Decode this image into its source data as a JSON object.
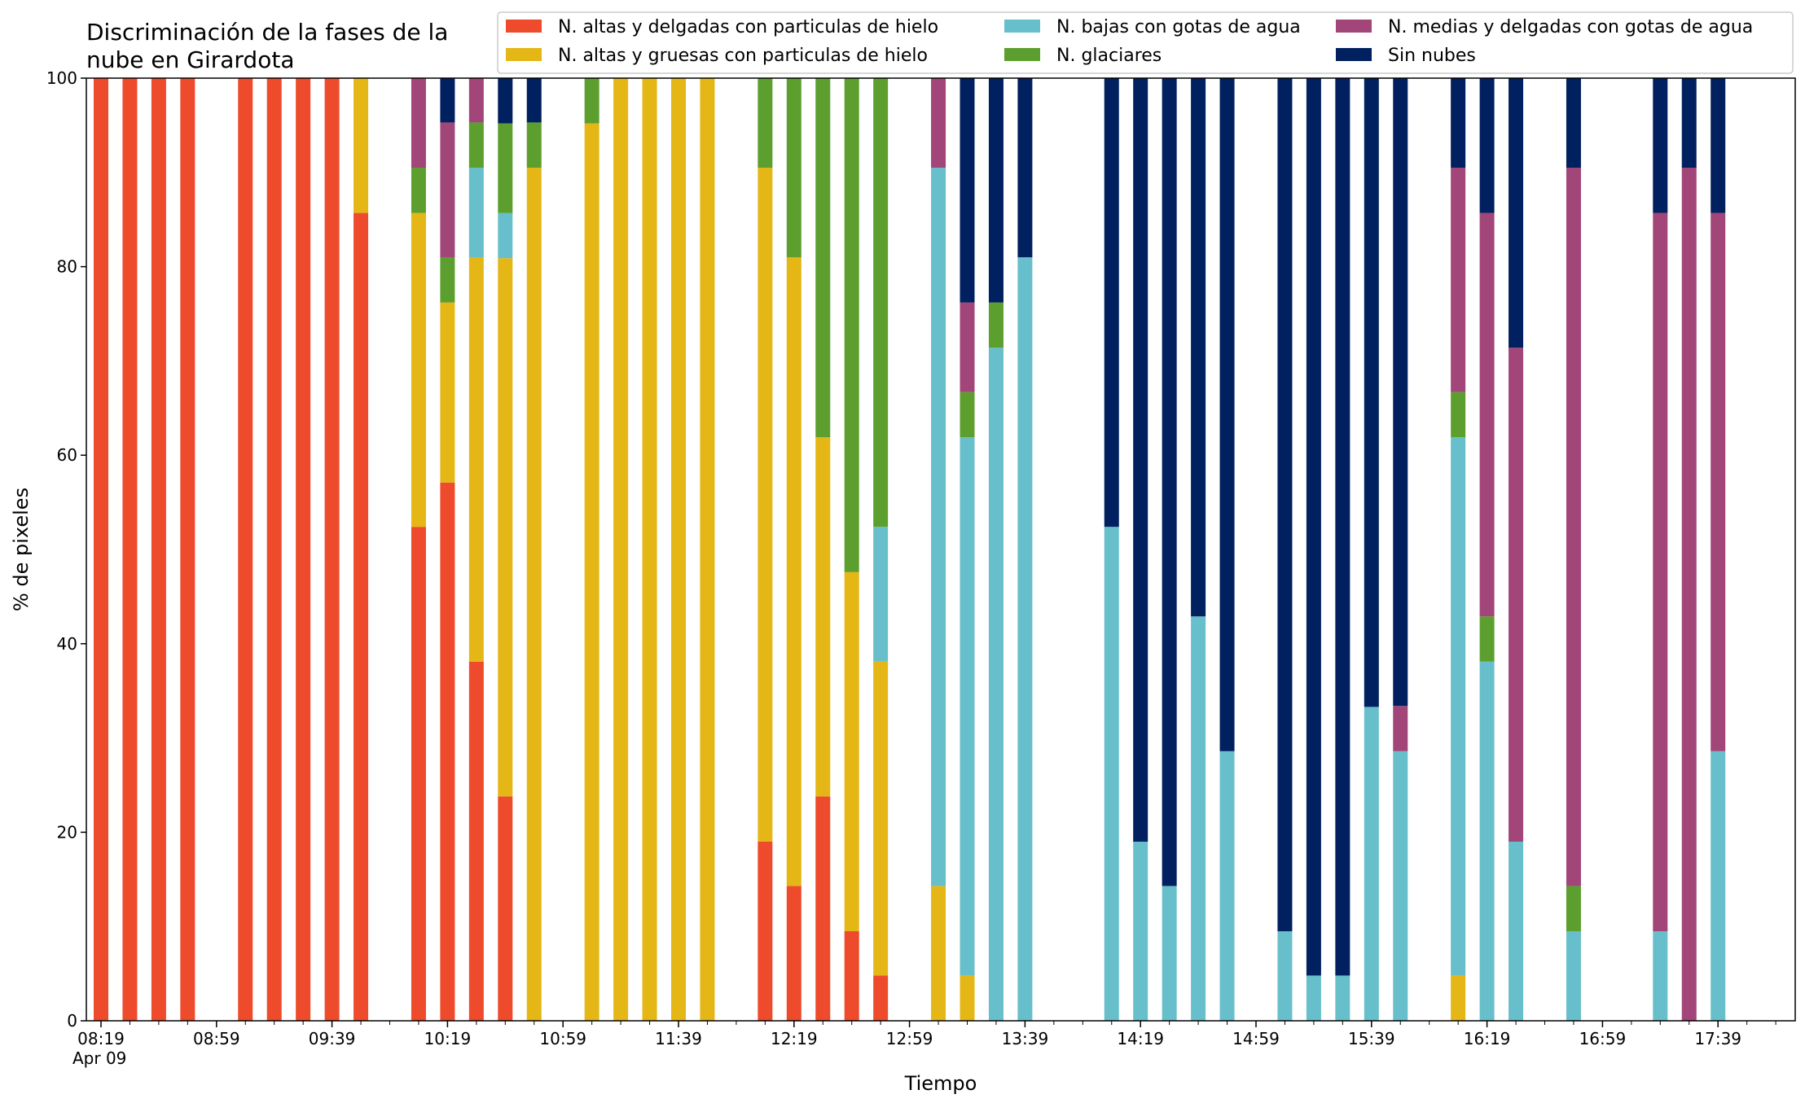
{
  "chart_data": {
    "type": "bar",
    "stacked": true,
    "title_lines": [
      "Discriminación de la fases de la",
      "nube en Girardota"
    ],
    "xlabel": "Tiempo",
    "ylabel": "% de pixeles",
    "ylim": [
      0,
      100
    ],
    "yticks": [
      0,
      20,
      40,
      60,
      80,
      100
    ],
    "xlim": [
      0,
      59
    ],
    "xtick_labels": [
      {
        "pos": 0,
        "label": "08:19",
        "sub": "Apr 09"
      },
      {
        "pos": 4,
        "label": "08:59"
      },
      {
        "pos": 8,
        "label": "09:39"
      },
      {
        "pos": 12,
        "label": "10:19"
      },
      {
        "pos": 16,
        "label": "10:59"
      },
      {
        "pos": 20,
        "label": "11:39"
      },
      {
        "pos": 24,
        "label": "12:19"
      },
      {
        "pos": 28,
        "label": "12:59"
      },
      {
        "pos": 32,
        "label": "13:39"
      },
      {
        "pos": 36,
        "label": "14:19"
      },
      {
        "pos": 40,
        "label": "14:59"
      },
      {
        "pos": 44,
        "label": "15:39"
      },
      {
        "pos": 48,
        "label": "16:19"
      },
      {
        "pos": 52,
        "label": "16:59"
      },
      {
        "pos": 56,
        "label": "17:39"
      }
    ],
    "minor_tick_positions": [
      1,
      2,
      3,
      5,
      6,
      7,
      9,
      10,
      11,
      13,
      14,
      15,
      17,
      18,
      19,
      21,
      22,
      23,
      25,
      26,
      27,
      29,
      30,
      31,
      33,
      34,
      35,
      37,
      38,
      39,
      41,
      42,
      43,
      45,
      46,
      47,
      49,
      50,
      51,
      53,
      54,
      55,
      57,
      58
    ],
    "legend_position": "top-right",
    "series_order": [
      "altas_delgadas",
      "altas_gruesas",
      "bajas_agua",
      "glaciares",
      "medias_agua",
      "sin_nubes"
    ],
    "series": {
      "altas_delgadas": {
        "name": "N. altas y delgadas con particulas de hielo",
        "color": "#ee4a2c"
      },
      "altas_gruesas": {
        "name": "N. altas y gruesas con particulas de hielo",
        "color": "#e4b716"
      },
      "bajas_agua": {
        "name": "N. bajas con gotas de agua",
        "color": "#67bfcb"
      },
      "glaciares": {
        "name": "N. glaciares",
        "color": "#5c9f2e"
      },
      "medias_agua": {
        "name": "N. medias y delgadas con gotas de agua",
        "color": "#a24579"
      },
      "sin_nubes": {
        "name": "Sin nubes",
        "color": "#00205f"
      }
    },
    "legend_layout": [
      [
        "altas_delgadas",
        "bajas_agua",
        "medias_agua"
      ],
      [
        "altas_gruesas",
        "glaciares",
        "sin_nubes"
      ]
    ],
    "bars": [
      {
        "x": 0,
        "altas_delgadas": 100
      },
      {
        "x": 1,
        "altas_delgadas": 100
      },
      {
        "x": 2,
        "altas_delgadas": 100
      },
      {
        "x": 3,
        "altas_delgadas": 100
      },
      {
        "x": 5,
        "altas_delgadas": 100
      },
      {
        "x": 6,
        "altas_delgadas": 100
      },
      {
        "x": 7,
        "altas_delgadas": 100
      },
      {
        "x": 8,
        "altas_delgadas": 100
      },
      {
        "x": 9,
        "altas_delgadas": 85.7,
        "altas_gruesas": 14.3
      },
      {
        "x": 11,
        "altas_delgadas": 52.4,
        "altas_gruesas": 33.3,
        "glaciares": 4.8,
        "medias_agua": 9.5
      },
      {
        "x": 12,
        "altas_delgadas": 57.1,
        "altas_gruesas": 19.1,
        "glaciares": 4.8,
        "medias_agua": 14.3,
        "sin_nubes": 4.7
      },
      {
        "x": 13,
        "altas_delgadas": 38.1,
        "altas_gruesas": 42.9,
        "bajas_agua": 9.5,
        "glaciares": 4.8,
        "medias_agua": 4.7
      },
      {
        "x": 14,
        "altas_delgadas": 23.8,
        "altas_gruesas": 57.1,
        "bajas_agua": 4.8,
        "glaciares": 9.5,
        "sin_nubes": 4.8
      },
      {
        "x": 15,
        "altas_gruesas": 90.5,
        "glaciares": 4.8,
        "sin_nubes": 4.7
      },
      {
        "x": 17,
        "altas_gruesas": 95.2,
        "glaciares": 4.8
      },
      {
        "x": 18,
        "altas_gruesas": 100
      },
      {
        "x": 19,
        "altas_gruesas": 100
      },
      {
        "x": 20,
        "altas_gruesas": 100
      },
      {
        "x": 21,
        "altas_gruesas": 100
      },
      {
        "x": 23,
        "altas_delgadas": 19.0,
        "altas_gruesas": 71.5,
        "glaciares": 9.5
      },
      {
        "x": 24,
        "altas_delgadas": 14.3,
        "altas_gruesas": 66.7,
        "glaciares": 19.0
      },
      {
        "x": 25,
        "altas_delgadas": 23.8,
        "altas_gruesas": 38.1,
        "glaciares": 38.1
      },
      {
        "x": 26,
        "altas_delgadas": 9.5,
        "altas_gruesas": 38.1,
        "glaciares": 52.4
      },
      {
        "x": 27,
        "altas_delgadas": 4.8,
        "altas_gruesas": 33.3,
        "bajas_agua": 14.3,
        "glaciares": 47.6
      },
      {
        "x": 29,
        "altas_gruesas": 14.3,
        "bajas_agua": 76.2,
        "medias_agua": 9.5
      },
      {
        "x": 30,
        "altas_gruesas": 4.8,
        "bajas_agua": 57.1,
        "glaciares": 4.8,
        "medias_agua": 9.5,
        "sin_nubes": 23.8
      },
      {
        "x": 31,
        "bajas_agua": 71.4,
        "glaciares": 4.8,
        "sin_nubes": 23.8
      },
      {
        "x": 32,
        "bajas_agua": 81.0,
        "sin_nubes": 19.0
      },
      {
        "x": 35,
        "bajas_agua": 52.4,
        "sin_nubes": 47.6
      },
      {
        "x": 36,
        "bajas_agua": 19.0,
        "sin_nubes": 81.0
      },
      {
        "x": 37,
        "bajas_agua": 14.3,
        "sin_nubes": 85.7
      },
      {
        "x": 38,
        "bajas_agua": 42.9,
        "sin_nubes": 57.1
      },
      {
        "x": 39,
        "bajas_agua": 28.6,
        "sin_nubes": 71.4
      },
      {
        "x": 41,
        "bajas_agua": 9.5,
        "sin_nubes": 90.5
      },
      {
        "x": 42,
        "bajas_agua": 4.8,
        "sin_nubes": 95.2
      },
      {
        "x": 43,
        "bajas_agua": 4.8,
        "sin_nubes": 95.2
      },
      {
        "x": 44,
        "bajas_agua": 33.3,
        "sin_nubes": 66.7
      },
      {
        "x": 45,
        "bajas_agua": 28.6,
        "medias_agua": 4.8,
        "sin_nubes": 66.6
      },
      {
        "x": 47,
        "altas_gruesas": 4.8,
        "bajas_agua": 57.1,
        "glaciares": 4.8,
        "medias_agua": 23.8,
        "sin_nubes": 9.5
      },
      {
        "x": 48,
        "bajas_agua": 38.1,
        "glaciares": 4.8,
        "medias_agua": 42.8,
        "sin_nubes": 14.3
      },
      {
        "x": 49,
        "bajas_agua": 19.0,
        "medias_agua": 52.4,
        "sin_nubes": 28.6
      },
      {
        "x": 51,
        "bajas_agua": 9.5,
        "glaciares": 4.8,
        "medias_agua": 76.2,
        "sin_nubes": 9.5
      },
      {
        "x": 54,
        "bajas_agua": 9.5,
        "medias_agua": 76.2,
        "sin_nubes": 14.3
      },
      {
        "x": 55,
        "medias_agua": 90.5,
        "sin_nubes": 9.5
      },
      {
        "x": 56,
        "bajas_agua": 28.6,
        "medias_agua": 57.1,
        "sin_nubes": 14.3
      }
    ]
  }
}
